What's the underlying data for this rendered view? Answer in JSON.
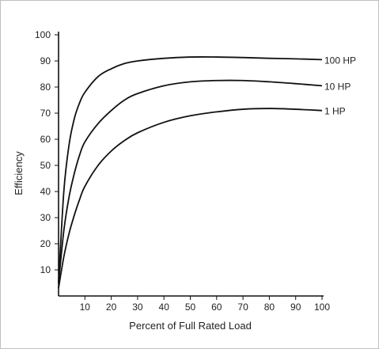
{
  "chart_data": {
    "type": "line",
    "title": "",
    "xlabel": "Percent of Full Rated Load",
    "ylabel": "Efficiency",
    "xlim": [
      0,
      100
    ],
    "ylim": [
      0,
      100
    ],
    "xticks": [
      10,
      20,
      30,
      40,
      50,
      60,
      70,
      80,
      90,
      100
    ],
    "yticks": [
      10,
      20,
      30,
      40,
      50,
      60,
      70,
      80,
      90,
      100
    ],
    "grid": false,
    "legend": "direct labels at right end of curves",
    "series": [
      {
        "name": "100 HP",
        "x": [
          0,
          2,
          4,
          6,
          8,
          10,
          15,
          20,
          25,
          30,
          40,
          50,
          60,
          70,
          80,
          90,
          100
        ],
        "y": [
          5,
          40,
          58,
          68,
          74,
          78,
          84,
          87,
          89,
          90,
          91,
          91.5,
          91.5,
          91.3,
          91,
          90.8,
          90.5
        ]
      },
      {
        "name": "10 HP",
        "x": [
          0,
          2,
          4,
          6,
          8,
          10,
          15,
          20,
          25,
          30,
          40,
          50,
          60,
          70,
          80,
          90,
          100
        ],
        "y": [
          5,
          25,
          38,
          47,
          54,
          59,
          66,
          71,
          75,
          77.5,
          80.5,
          82,
          82.5,
          82.5,
          82,
          81.3,
          80.5
        ]
      },
      {
        "name": "1 HP",
        "x": [
          0,
          2,
          4,
          6,
          8,
          10,
          15,
          20,
          25,
          30,
          40,
          50,
          60,
          70,
          80,
          90,
          100
        ],
        "y": [
          3,
          15,
          24,
          31,
          37,
          42,
          50,
          55.5,
          59.5,
          62.5,
          66.5,
          69,
          70.5,
          71.5,
          71.8,
          71.5,
          71
        ]
      }
    ]
  }
}
